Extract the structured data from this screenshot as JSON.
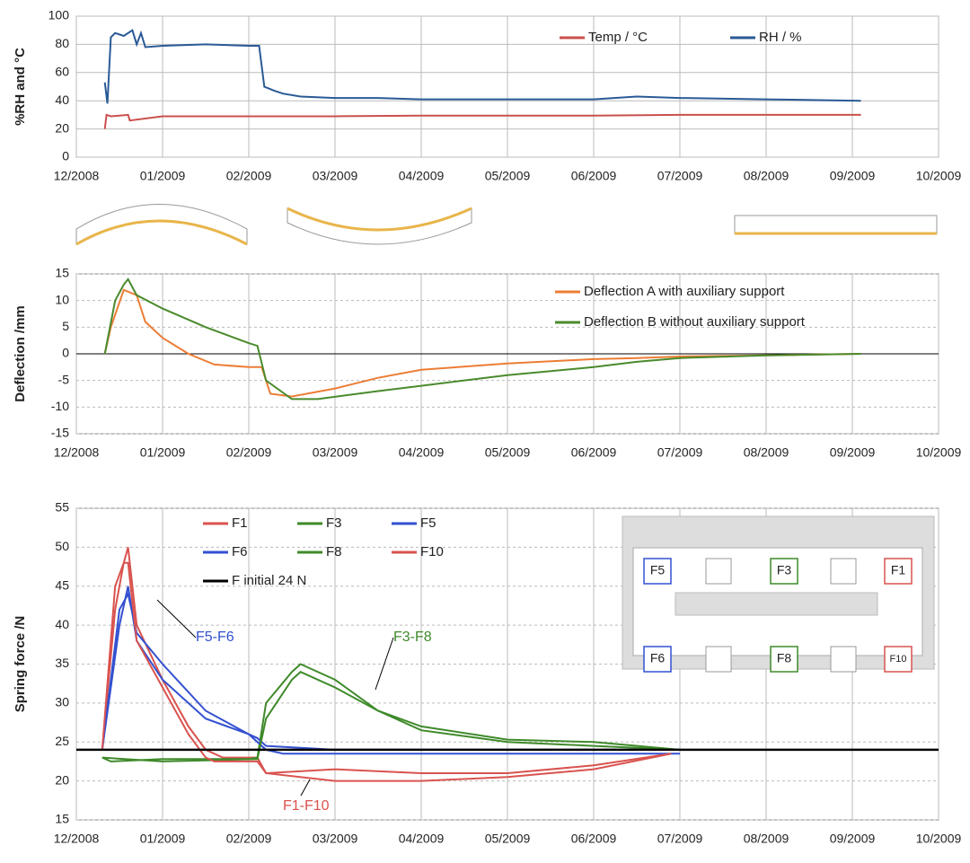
{
  "chart_data": [
    {
      "type": "line",
      "ylabel": "%RH  and  °C",
      "xlim": [
        0,
        10
      ],
      "xticks": [
        {
          "value": 0,
          "label": "12/2008"
        },
        {
          "value": 1,
          "label": "01/2009"
        },
        {
          "value": 2,
          "label": "02/2009"
        },
        {
          "value": 3,
          "label": "03/2009"
        },
        {
          "value": 4,
          "label": "04/2009"
        },
        {
          "value": 5,
          "label": "05/2009"
        },
        {
          "value": 6,
          "label": "06/2009"
        },
        {
          "value": 7,
          "label": "07/2009"
        },
        {
          "value": 8,
          "label": "08/2009"
        },
        {
          "value": 9,
          "label": "09/2009"
        },
        {
          "value": 10,
          "label": "10/2009"
        }
      ],
      "ylim": [
        0,
        100
      ],
      "yticks": [
        0,
        20,
        40,
        60,
        80,
        100
      ],
      "grid": true,
      "legend": "top-right",
      "series": [
        {
          "name": "Temp / °C",
          "color": "#c9504d",
          "x": [
            0.33,
            0.35,
            0.4,
            0.6,
            0.62,
            1,
            2,
            3,
            4,
            5,
            6,
            7,
            8,
            9.1
          ],
          "values": [
            20,
            30,
            29,
            30,
            26,
            29,
            29,
            29,
            29.5,
            29.5,
            29.5,
            30,
            30,
            30
          ]
        },
        {
          "name": "RH / %",
          "color": "#2a5a96",
          "x": [
            0.33,
            0.36,
            0.4,
            0.45,
            0.55,
            0.65,
            0.7,
            0.75,
            0.8,
            1,
            1.5,
            2,
            2.12,
            2.18,
            2.3,
            2.4,
            2.6,
            3,
            3.5,
            4,
            5,
            6,
            6.5,
            7,
            8,
            9.1
          ],
          "values": [
            53,
            38,
            85,
            88,
            86,
            90,
            80,
            88,
            78,
            79,
            80,
            79,
            79,
            50,
            47,
            45,
            43,
            42,
            42,
            41,
            41,
            41,
            43,
            42,
            41,
            40
          ]
        }
      ]
    },
    {
      "type": "line",
      "ylabel": "Deflection /mm",
      "xlim": [
        0,
        10
      ],
      "xticks": [
        {
          "value": 0,
          "label": "12/2008"
        },
        {
          "value": 1,
          "label": "01/2009"
        },
        {
          "value": 2,
          "label": "02/2009"
        },
        {
          "value": 3,
          "label": "03/2009"
        },
        {
          "value": 4,
          "label": "04/2009"
        },
        {
          "value": 5,
          "label": "05/2009"
        },
        {
          "value": 6,
          "label": "06/2009"
        },
        {
          "value": 7,
          "label": "07/2009"
        },
        {
          "value": 8,
          "label": "08/2009"
        },
        {
          "value": 9,
          "label": "09/2009"
        },
        {
          "value": 10,
          "label": "10/2009"
        }
      ],
      "ylim": [
        -15,
        15
      ],
      "yticks": [
        -15,
        -10,
        -5,
        0,
        5,
        10,
        15
      ],
      "grid": true,
      "legend": "top-right",
      "series": [
        {
          "name": "Deflection A with auxiliary support",
          "color": "#ec7d35",
          "x": [
            0.33,
            0.4,
            0.55,
            0.7,
            0.8,
            1,
            1.3,
            1.6,
            2,
            2.15,
            2.25,
            2.5,
            3,
            3.5,
            4,
            5,
            6,
            6.5,
            7,
            8,
            9.1
          ],
          "values": [
            0,
            5,
            12,
            11,
            6,
            3,
            0,
            -2,
            -2.5,
            -2.5,
            -7.5,
            -8,
            -6.5,
            -4.5,
            -3,
            -1.8,
            -1,
            -0.8,
            -0.5,
            -0.3,
            0
          ]
        },
        {
          "name": "Deflection B without auxiliary support",
          "color": "#4a8a2c",
          "x": [
            0.33,
            0.45,
            0.55,
            0.6,
            0.7,
            1,
            1.5,
            2,
            2.1,
            2.2,
            2.5,
            2.8,
            3.5,
            4,
            5,
            6,
            6.5,
            7,
            8,
            9.1
          ],
          "values": [
            0,
            10,
            13,
            14,
            11,
            8.5,
            5,
            2,
            1.5,
            -5,
            -8.5,
            -8.5,
            -7,
            -6,
            -4,
            -2.5,
            -1.5,
            -0.8,
            -0.3,
            0
          ]
        }
      ]
    },
    {
      "type": "line",
      "ylabel": "Spring force /N",
      "xlim": [
        0,
        10
      ],
      "xticks": [
        {
          "value": 0,
          "label": "12/2008"
        },
        {
          "value": 1,
          "label": "01/2009"
        },
        {
          "value": 2,
          "label": "02/2009"
        },
        {
          "value": 3,
          "label": "03/2009"
        },
        {
          "value": 4,
          "label": "04/2009"
        },
        {
          "value": 5,
          "label": "05/2009"
        },
        {
          "value": 6,
          "label": "06/2009"
        },
        {
          "value": 7,
          "label": "07/2009"
        },
        {
          "value": 8,
          "label": "08/2009"
        },
        {
          "value": 9,
          "label": "09/2009"
        },
        {
          "value": 10,
          "label": "10/2009"
        }
      ],
      "ylim": [
        15,
        55
      ],
      "yticks": [
        15,
        20,
        25,
        30,
        35,
        40,
        45,
        50,
        55
      ],
      "grid": true,
      "legend": "top-left",
      "series": [
        {
          "name": "F1",
          "color": "#d9534f",
          "x": [
            0.3,
            0.45,
            0.55,
            0.6,
            0.7,
            1,
            1.3,
            1.5,
            1.7,
            2.1,
            2.2,
            3,
            4,
            5,
            6,
            6.9
          ],
          "values": [
            24,
            42,
            48,
            50,
            40,
            33,
            27,
            24,
            23,
            23,
            21,
            20,
            20,
            20.5,
            21.5,
            23.5
          ]
        },
        {
          "name": "F3",
          "color": "#3f8a2a",
          "x": [
            0.3,
            0.4,
            1,
            2,
            2.1,
            2.2,
            2.5,
            2.6,
            3,
            3.5,
            4,
            5,
            6,
            7
          ],
          "values": [
            23,
            22.5,
            22.8,
            22.8,
            23,
            30,
            34,
            35,
            33,
            29,
            27,
            25.3,
            25,
            24
          ]
        },
        {
          "name": "F5",
          "color": "#3350d0",
          "x": [
            0.3,
            0.5,
            0.6,
            0.7,
            1,
            1.5,
            2,
            2.1,
            2.2,
            3,
            5,
            7
          ],
          "values": [
            24,
            40,
            45,
            38,
            33,
            28,
            26,
            25.5,
            24.5,
            24,
            24,
            24
          ]
        },
        {
          "name": "F6",
          "color": "#3350d0",
          "x": [
            0.3,
            0.5,
            0.6,
            0.7,
            1,
            1.5,
            2,
            2.2,
            2.4,
            3,
            5,
            7
          ],
          "values": [
            24,
            42,
            44,
            39,
            35,
            29,
            26,
            24,
            23.5,
            23.5,
            23.5,
            23.5
          ]
        },
        {
          "name": "F8",
          "color": "#3f8a2a",
          "x": [
            0.3,
            1,
            2.1,
            2.2,
            2.5,
            2.6,
            3,
            3.5,
            4,
            5,
            6,
            7
          ],
          "values": [
            23,
            22.5,
            22.8,
            28,
            33,
            34,
            32,
            29,
            26.5,
            25,
            24.5,
            24
          ]
        },
        {
          "name": "F10",
          "color": "#d9534f",
          "x": [
            0.3,
            0.45,
            0.55,
            0.6,
            0.7,
            1,
            1.3,
            1.5,
            1.6,
            2.1,
            2.2,
            3,
            4,
            5,
            6,
            6.9
          ],
          "values": [
            24,
            45,
            48,
            48,
            38,
            32,
            26,
            23,
            22.5,
            22.5,
            21,
            21.5,
            21,
            21,
            22,
            23.5
          ]
        },
        {
          "name": "F initial 24 N",
          "color": "#000000",
          "x": [
            0,
            10
          ],
          "values": [
            24,
            24
          ]
        }
      ],
      "annotations": [
        "F5-F6",
        "F3-F8",
        "F1-F10"
      ],
      "inset": {
        "labels": [
          "F5",
          "F3",
          "F1",
          "F6",
          "F8",
          "F10"
        ]
      }
    }
  ]
}
